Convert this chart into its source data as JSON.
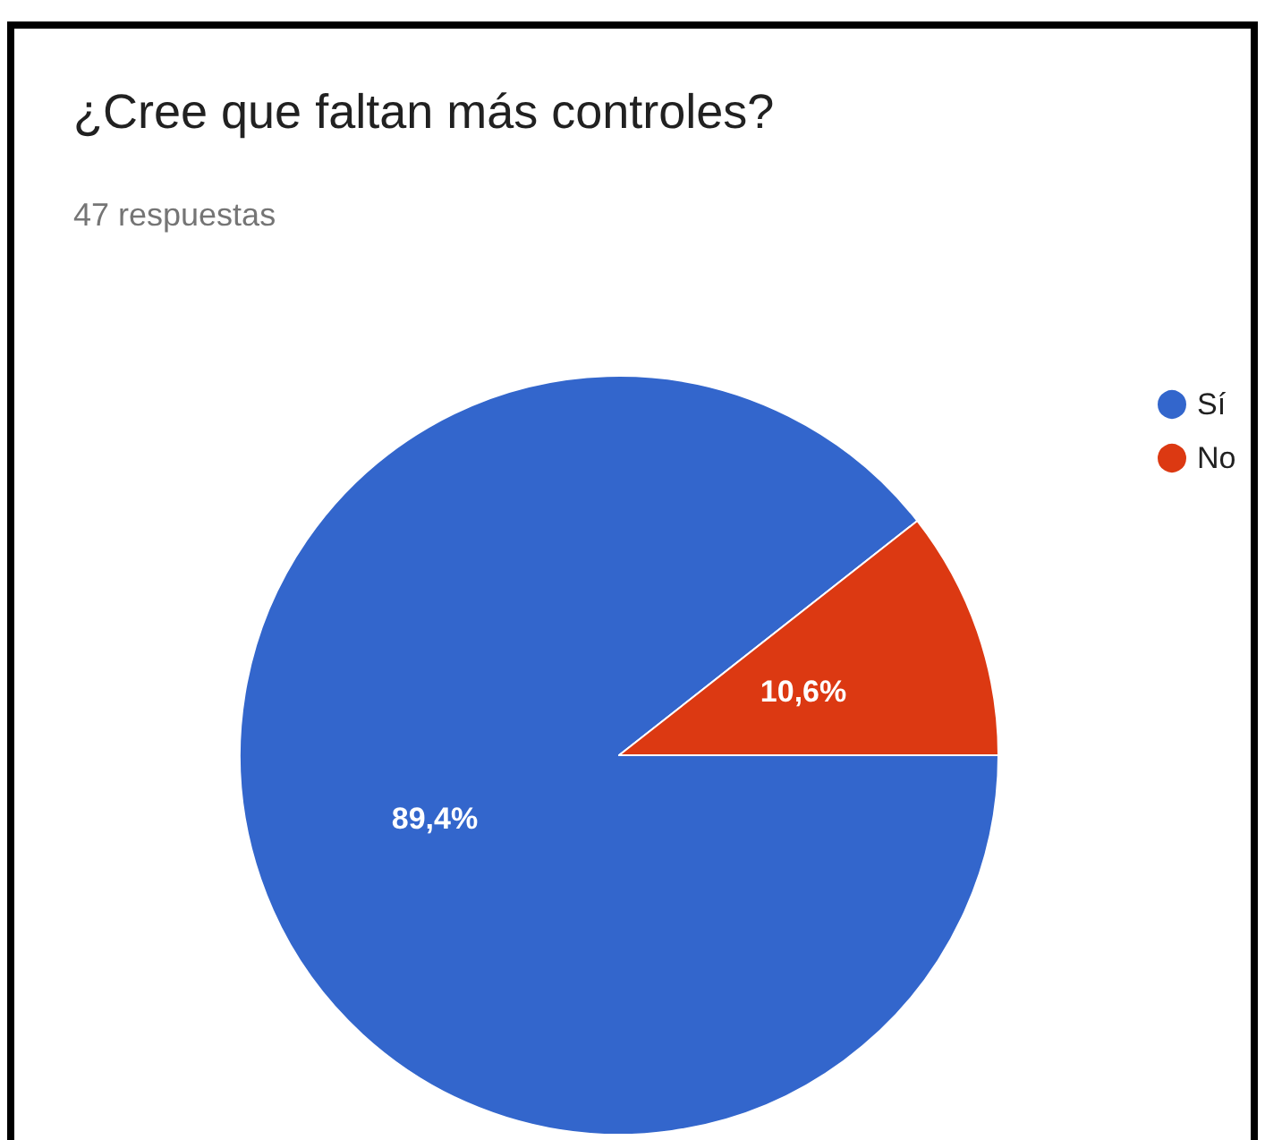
{
  "chart_data": {
    "type": "pie",
    "title": "¿Cree que faltan más controles?",
    "subtitle": "47 respuestas",
    "categories": [
      "Sí",
      "No"
    ],
    "values": [
      89.4,
      10.6
    ],
    "colors": [
      "#3366cc",
      "#dc3912"
    ],
    "value_labels": [
      "89,4%",
      "10,6%"
    ],
    "legend": "right"
  }
}
